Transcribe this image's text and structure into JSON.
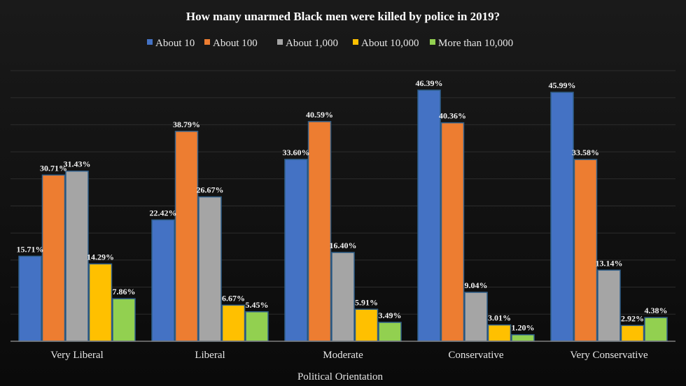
{
  "chart_data": {
    "type": "bar",
    "title": "How many unarmed Black men were killed by police in 2019?",
    "xlabel": "Political Orientation",
    "ylabel": "",
    "ylim": [
      0,
      50
    ],
    "grid": true,
    "legend_position": "top",
    "categories": [
      "Very Liberal",
      "Liberal",
      "Moderate",
      "Conservative",
      "Very Conservative"
    ],
    "series": [
      {
        "name": "About 10",
        "color": "#4472c4",
        "values": [
          15.71,
          22.42,
          33.6,
          46.39,
          45.99
        ],
        "labels": [
          "15.71%",
          "22.42%",
          "33.60%",
          "46.39%",
          "45.99%"
        ]
      },
      {
        "name": "About 100",
        "color": "#ed7d31",
        "values": [
          30.71,
          38.79,
          40.59,
          40.36,
          33.58
        ],
        "labels": [
          "30.71%",
          "38.79%",
          "40.59%",
          "40.36%",
          "33.58%"
        ]
      },
      {
        "name": "About 1,000",
        "color": "#a5a5a5",
        "values": [
          31.43,
          26.67,
          16.4,
          9.04,
          13.14
        ],
        "labels": [
          "31.43%",
          "26.67%",
          "16.40%",
          "9.04%",
          "13.14%"
        ]
      },
      {
        "name": "About 10,000",
        "color": "#ffc000",
        "values": [
          14.29,
          6.67,
          5.91,
          3.01,
          2.92
        ],
        "labels": [
          "14.29%",
          "6.67%",
          "5.91%",
          "3.01%",
          "2.92%"
        ]
      },
      {
        "name": "More than 10,000",
        "color": "#92d050",
        "values": [
          7.86,
          5.45,
          3.49,
          1.2,
          4.38
        ],
        "labels": [
          "7.86%",
          "5.45%",
          "3.49%",
          "1.20%",
          "4.38%"
        ]
      }
    ]
  }
}
